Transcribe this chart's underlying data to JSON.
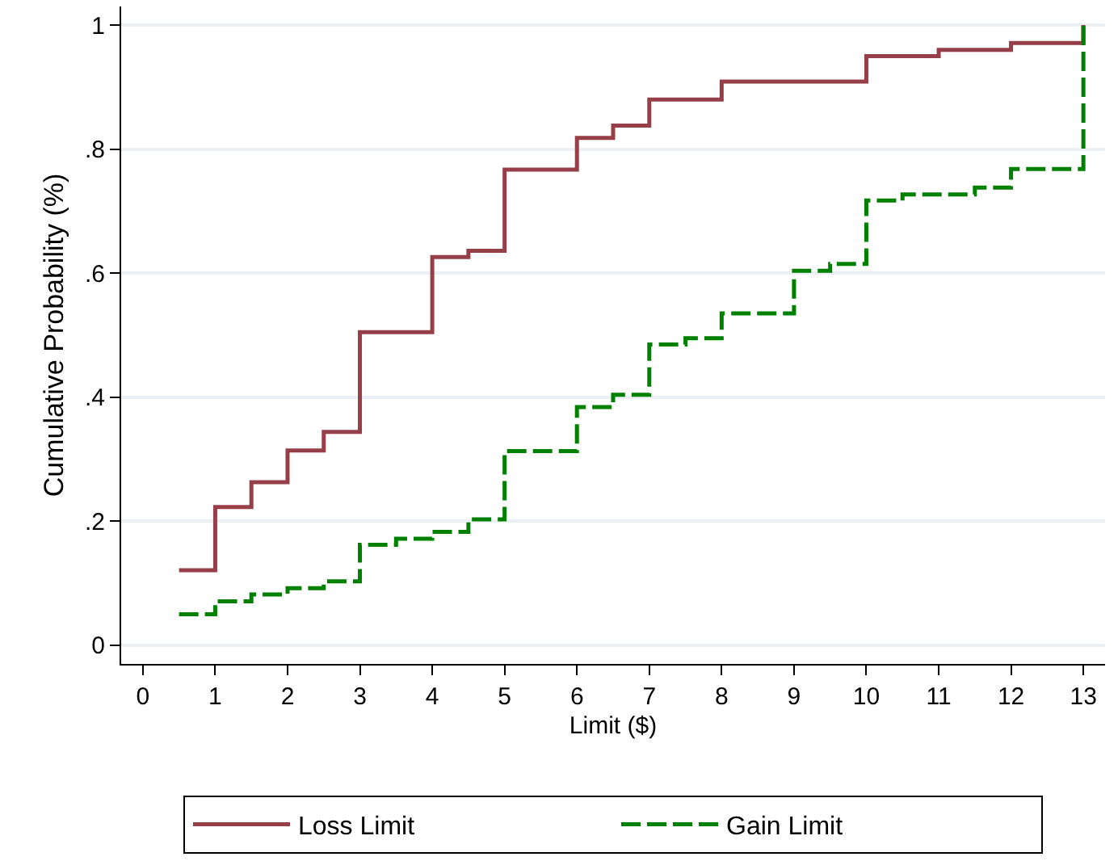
{
  "chart_data": {
    "type": "step",
    "xlabel": "Limit ($)",
    "ylabel": "Cumulative Probability (%)",
    "xlim": [
      -0.3,
      13.3
    ],
    "xticks": [
      0,
      1,
      2,
      3,
      4,
      5,
      6,
      7,
      8,
      9,
      10,
      11,
      12,
      13
    ],
    "ylim": [
      -0.03,
      1.03
    ],
    "yticks": [
      {
        "value": 0,
        "label": "0"
      },
      {
        "value": 0.2,
        "label": ".2"
      },
      {
        "value": 0.4,
        "label": ".4"
      },
      {
        "value": 0.6,
        "label": ".6"
      },
      {
        "value": 0.8,
        "label": ".8"
      },
      {
        "value": 1,
        "label": "1"
      }
    ],
    "grid": "y",
    "legend": "bottom",
    "marker": "none",
    "series": [
      {
        "name": "Loss Limit",
        "color": "#963f49",
        "line_style": "solid",
        "x": [
          0.5,
          1,
          1.5,
          2,
          2.5,
          3,
          4,
          4.5,
          5,
          6,
          6.5,
          7,
          8,
          10,
          11,
          12,
          13
        ],
        "values": [
          0.121,
          0.223,
          0.263,
          0.314,
          0.344,
          0.505,
          0.626,
          0.636,
          0.767,
          0.818,
          0.838,
          0.88,
          0.909,
          0.95,
          0.96,
          0.971,
          1.0
        ]
      },
      {
        "name": "Gain Limit",
        "color": "#008000",
        "line_style": "dashed",
        "x": [
          0.5,
          1,
          1.5,
          2,
          2.5,
          3,
          3.5,
          4,
          4.5,
          5,
          6,
          6.5,
          7,
          7.5,
          8,
          9,
          9.5,
          10,
          10.5,
          11.5,
          12,
          13
        ],
        "values": [
          0.05,
          0.071,
          0.082,
          0.092,
          0.103,
          0.162,
          0.172,
          0.183,
          0.203,
          0.313,
          0.384,
          0.404,
          0.485,
          0.495,
          0.535,
          0.604,
          0.615,
          0.717,
          0.727,
          0.738,
          0.768,
          1.0
        ]
      }
    ]
  }
}
